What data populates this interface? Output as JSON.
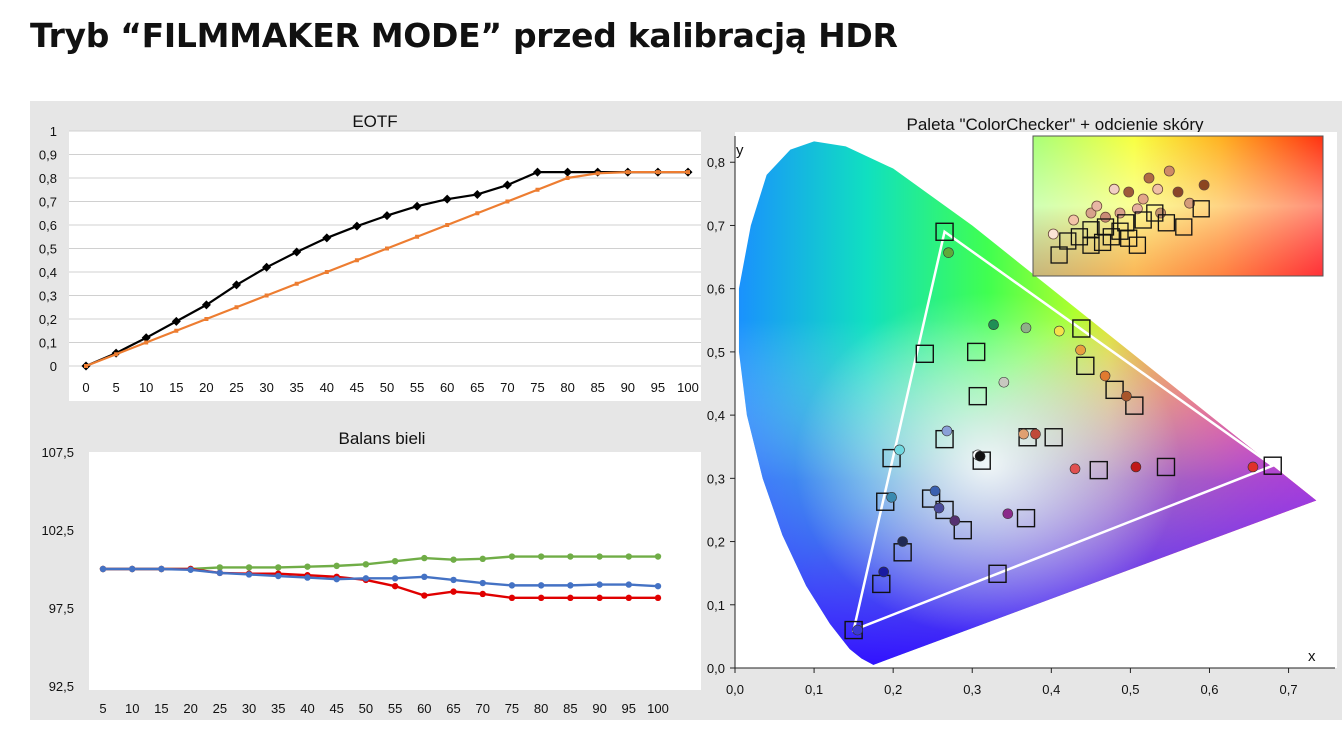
{
  "page": {
    "title": "Tryb “FILMMAKER MODE” przed kalibracją HDR"
  },
  "chart_data": [
    {
      "type": "line",
      "title": "EOTF",
      "ylim": [
        0,
        1
      ],
      "yticks": [
        "0",
        "0,1",
        "0,2",
        "0,3",
        "0,4",
        "0,5",
        "0,6",
        "0,7",
        "0,8",
        "0,9",
        "1"
      ],
      "x": [
        0,
        5,
        10,
        15,
        20,
        25,
        30,
        35,
        40,
        45,
        50,
        55,
        60,
        65,
        70,
        75,
        80,
        85,
        90,
        95,
        100
      ],
      "series": [
        {
          "color": "#000000",
          "marker": "diamond",
          "values": [
            0,
            0.055,
            0.12,
            0.19,
            0.26,
            0.345,
            0.42,
            0.485,
            0.545,
            0.595,
            0.64,
            0.68,
            0.71,
            0.73,
            0.77,
            0.825,
            0.825,
            0.825,
            0.825,
            0.825,
            0.825
          ]
        },
        {
          "color": "#ed7d31",
          "marker": "dash",
          "values": [
            0,
            0.05,
            0.1,
            0.15,
            0.2,
            0.25,
            0.3,
            0.35,
            0.4,
            0.45,
            0.5,
            0.55,
            0.6,
            0.65,
            0.7,
            0.75,
            0.8,
            0.82,
            0.825,
            0.825,
            0.825
          ]
        }
      ],
      "grid": true
    },
    {
      "type": "line",
      "title": "Balans bieli",
      "ylim": [
        92.5,
        107.5
      ],
      "yticks": [
        "92,5",
        "97,5",
        "102,5",
        "107,5"
      ],
      "x": [
        5,
        10,
        15,
        20,
        25,
        30,
        35,
        40,
        45,
        50,
        55,
        60,
        65,
        70,
        75,
        80,
        85,
        90,
        95,
        100
      ],
      "series": [
        {
          "color": "#70ad47",
          "values": [
            100,
            100,
            100,
            100,
            100.1,
            100.1,
            100.1,
            100.15,
            100.2,
            100.3,
            100.5,
            100.7,
            100.6,
            100.65,
            100.8,
            100.8,
            100.8,
            100.8,
            100.8,
            100.8
          ]
        },
        {
          "color": "#e00000",
          "values": [
            100,
            100,
            100,
            100,
            99.75,
            99.7,
            99.7,
            99.6,
            99.5,
            99.3,
            98.9,
            98.3,
            98.55,
            98.4,
            98.15,
            98.15,
            98.15,
            98.15,
            98.15,
            98.15
          ]
        },
        {
          "color": "#4472c4",
          "values": [
            100,
            100,
            100,
            99.95,
            99.75,
            99.65,
            99.55,
            99.45,
            99.35,
            99.4,
            99.4,
            99.5,
            99.3,
            99.1,
            98.95,
            98.95,
            98.95,
            99,
            99,
            98.9
          ]
        }
      ],
      "grid": false
    },
    {
      "type": "scatter",
      "title": "Paleta \"ColorChecker\" + odcienie skóry",
      "xlabel": "x",
      "ylabel": "y",
      "xlim": [
        0,
        0.74
      ],
      "ylim": [
        0,
        0.82
      ],
      "xticks": [
        "0,0",
        "0,1",
        "0,2",
        "0,3",
        "0,4",
        "0,5",
        "0,6",
        "0,7"
      ],
      "yticks": [
        "0,0",
        "0,1",
        "0,2",
        "0,3",
        "0,4",
        "0,5",
        "0,6",
        "0,7",
        "0,8"
      ],
      "gamut_triangle": [
        [
          0.265,
          0.69
        ],
        [
          0.68,
          0.32
        ],
        [
          0.15,
          0.06
        ]
      ],
      "targets": [
        [
          0.265,
          0.69
        ],
        [
          0.68,
          0.32
        ],
        [
          0.15,
          0.06
        ],
        [
          0.438,
          0.537
        ],
        [
          0.305,
          0.5
        ],
        [
          0.307,
          0.43
        ],
        [
          0.443,
          0.478
        ],
        [
          0.48,
          0.44
        ],
        [
          0.505,
          0.415
        ],
        [
          0.24,
          0.497
        ],
        [
          0.265,
          0.362
        ],
        [
          0.312,
          0.328
        ],
        [
          0.37,
          0.365
        ],
        [
          0.403,
          0.365
        ],
        [
          0.46,
          0.313
        ],
        [
          0.545,
          0.318
        ],
        [
          0.198,
          0.332
        ],
        [
          0.19,
          0.263
        ],
        [
          0.212,
          0.183
        ],
        [
          0.248,
          0.268
        ],
        [
          0.265,
          0.25
        ],
        [
          0.288,
          0.218
        ],
        [
          0.368,
          0.237
        ],
        [
          0.332,
          0.149
        ],
        [
          0.185,
          0.133
        ]
      ],
      "measured": [
        {
          "xy": [
            0.27,
            0.657
          ],
          "color": "#5faa3a"
        },
        {
          "xy": [
            0.655,
            0.318
          ],
          "color": "#e0302a"
        },
        {
          "xy": [
            0.155,
            0.06
          ],
          "color": "#3a3ad0"
        },
        {
          "xy": [
            0.327,
            0.543
          ],
          "color": "#1f8f55"
        },
        {
          "xy": [
            0.368,
            0.538
          ],
          "color": "#8fb088"
        },
        {
          "xy": [
            0.41,
            0.533
          ],
          "color": "#f4e24a"
        },
        {
          "xy": [
            0.437,
            0.503
          ],
          "color": "#e8a040"
        },
        {
          "xy": [
            0.468,
            0.462
          ],
          "color": "#e07a30"
        },
        {
          "xy": [
            0.495,
            0.43
          ],
          "color": "#a8552a"
        },
        {
          "xy": [
            0.34,
            0.452
          ],
          "color": "#c8c8c0"
        },
        {
          "xy": [
            0.268,
            0.375
          ],
          "color": "#8aa0d8"
        },
        {
          "xy": [
            0.307,
            0.337
          ],
          "color": "#ffffff"
        },
        {
          "xy": [
            0.31,
            0.335
          ],
          "color": "#111111"
        },
        {
          "xy": [
            0.365,
            0.37
          ],
          "color": "#e0a070"
        },
        {
          "xy": [
            0.38,
            0.37
          ],
          "color": "#c04a3a"
        },
        {
          "xy": [
            0.43,
            0.315
          ],
          "color": "#e05050"
        },
        {
          "xy": [
            0.507,
            0.318
          ],
          "color": "#c01818"
        },
        {
          "xy": [
            0.208,
            0.345
          ],
          "color": "#70d8e0"
        },
        {
          "xy": [
            0.198,
            0.27
          ],
          "color": "#3a8ab0"
        },
        {
          "xy": [
            0.253,
            0.28
          ],
          "color": "#3a60b0"
        },
        {
          "xy": [
            0.258,
            0.253
          ],
          "color": "#4a4a9a"
        },
        {
          "xy": [
            0.278,
            0.233
          ],
          "color": "#553070"
        },
        {
          "xy": [
            0.345,
            0.244
          ],
          "color": "#8a2a8a"
        },
        {
          "xy": [
            0.212,
            0.2
          ],
          "color": "#202a55"
        },
        {
          "xy": [
            0.188,
            0.152
          ],
          "color": "#1a1aa0"
        }
      ],
      "inset": {
        "targets": [
          [
            0.09,
            0.15
          ],
          [
            0.12,
            0.25
          ],
          [
            0.16,
            0.28
          ],
          [
            0.2,
            0.22
          ],
          [
            0.24,
            0.24
          ],
          [
            0.27,
            0.28
          ],
          [
            0.3,
            0.32
          ],
          [
            0.33,
            0.27
          ],
          [
            0.36,
            0.22
          ],
          [
            0.38,
            0.4
          ],
          [
            0.42,
            0.45
          ],
          [
            0.46,
            0.38
          ],
          [
            0.52,
            0.35
          ],
          [
            0.58,
            0.48
          ],
          [
            0.2,
            0.33
          ],
          [
            0.25,
            0.35
          ],
          [
            0.32,
            0.38
          ]
        ],
        "points": [
          {
            "xy": [
              0.07,
              0.3
            ],
            "color": "#fbe3d6"
          },
          {
            "xy": [
              0.14,
              0.4
            ],
            "color": "#f3c4a8"
          },
          {
            "xy": [
              0.2,
              0.45
            ],
            "color": "#d7a28c"
          },
          {
            "xy": [
              0.22,
              0.5
            ],
            "color": "#e7b6a4"
          },
          {
            "xy": [
              0.25,
              0.42
            ],
            "color": "#c98b76"
          },
          {
            "xy": [
              0.28,
              0.62
            ],
            "color": "#f2cfc4"
          },
          {
            "xy": [
              0.3,
              0.45
            ],
            "color": "#d8a08c"
          },
          {
            "xy": [
              0.33,
              0.6
            ],
            "color": "#9e5a3a"
          },
          {
            "xy": [
              0.36,
              0.48
            ],
            "color": "#e6b0a0"
          },
          {
            "xy": [
              0.4,
              0.7
            ],
            "color": "#b06a44"
          },
          {
            "xy": [
              0.43,
              0.62
            ],
            "color": "#f0c0a6"
          },
          {
            "xy": [
              0.44,
              0.45
            ],
            "color": "#c2926e"
          },
          {
            "xy": [
              0.47,
              0.75
            ],
            "color": "#cf8a66"
          },
          {
            "xy": [
              0.5,
              0.6
            ],
            "color": "#8a4428"
          },
          {
            "xy": [
              0.54,
              0.52
            ],
            "color": "#d49c7a"
          },
          {
            "xy": [
              0.59,
              0.65
            ],
            "color": "#8b4520"
          },
          {
            "xy": [
              0.38,
              0.55
            ],
            "color": "#e2a68a"
          }
        ]
      }
    }
  ]
}
